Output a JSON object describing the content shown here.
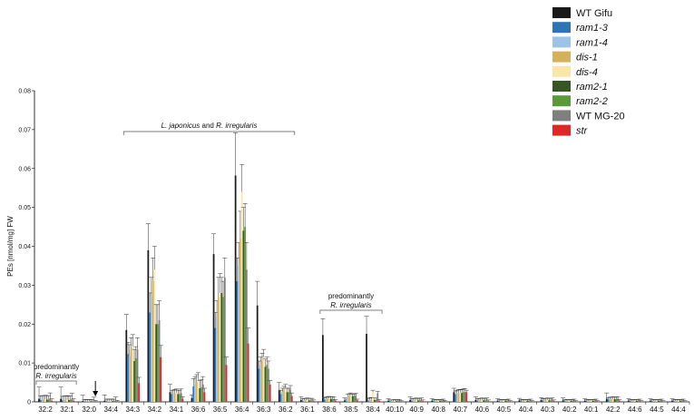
{
  "chart_data": {
    "type": "bar",
    "ylabel": "PEs [nmol/mg] FW",
    "ylim": [
      0,
      0.08
    ],
    "yticks": [
      "0",
      "0.01",
      "0.02",
      "0.03",
      "0.04",
      "0.05",
      "0.06",
      "0.07",
      "0.08"
    ],
    "categories": [
      "32:2",
      "32:1",
      "32:0",
      "34:4",
      "34:3",
      "34:2",
      "34:1",
      "36:6",
      "36:5",
      "36:4",
      "36:3",
      "36:2",
      "36:1",
      "38:6",
      "38:5",
      "38:4",
      "40:10",
      "40:9",
      "40:8",
      "40:7",
      "40:6",
      "40:5",
      "40:4",
      "40:3",
      "40:2",
      "40:1",
      "42:2",
      "44:6",
      "44:5",
      "44:4"
    ],
    "series": [
      {
        "name": "WT Gifu",
        "color": "#1a1a1a",
        "values": [
          0.0008,
          0.0008,
          0.0002,
          0.0003,
          0.0185,
          0.039,
          0.0025,
          0.001,
          0.038,
          0.0582,
          0.0248,
          0.003,
          0.0005,
          0.0172,
          0.0004,
          0.0175,
          0.0003,
          0.0005,
          0.0003,
          0.0025,
          0.0005,
          0.0003,
          0.0004,
          0.0005,
          0.0004,
          0.0003,
          0.0008,
          0.0003,
          0.0003,
          0.0003
        ],
        "errors": [
          0.003,
          0.003,
          0.0015,
          0.0015,
          0.004,
          0.0068,
          0.002,
          0.0008,
          0.0052,
          0.011,
          0.0062,
          0.002,
          0.0008,
          0.0042,
          0.0006,
          0.0045,
          0.0005,
          0.0008,
          0.0005,
          0.001,
          0.0008,
          0.0005,
          0.0005,
          0.0006,
          0.0006,
          0.0005,
          0.0015,
          0.0005,
          0.0005,
          0.0005
        ]
      },
      {
        "name": "ram1-3",
        "color": "#2f72b5",
        "values": [
          0.0005,
          0.0004,
          0.0001,
          0.0002,
          0.0123,
          0.023,
          0.002,
          0.004,
          0.019,
          0.031,
          0.0085,
          0.002,
          0.0003,
          0.0006,
          0.0002,
          0.0004,
          0.0002,
          0.0003,
          0.0002,
          0.002,
          0.0003,
          0.0002,
          0.0002,
          0.0003,
          0.0002,
          0.0002,
          0.0006,
          0.0002,
          0.0002,
          0.0002
        ],
        "errors": [
          0.001,
          0.001,
          0.0005,
          0.0005,
          0.003,
          0.005,
          0.001,
          0.002,
          0.004,
          0.006,
          0.002,
          0.001,
          0.0005,
          0.0005,
          0.0005,
          0.0005,
          0.0003,
          0.0005,
          0.0003,
          0.0008,
          0.0005,
          0.0003,
          0.0003,
          0.0005,
          0.0003,
          0.0003,
          0.0005,
          0.0003,
          0.0003,
          0.0003
        ]
      },
      {
        "name": "ram1-4",
        "color": "#9dc3e6",
        "values": [
          0.0006,
          0.0005,
          0.0001,
          0.0002,
          0.0117,
          0.027,
          0.002,
          0.0045,
          0.022,
          0.035,
          0.0095,
          0.0025,
          0.0004,
          0.0007,
          0.0015,
          0.0005,
          0.0002,
          0.0004,
          0.0003,
          0.0022,
          0.0004,
          0.0003,
          0.0003,
          0.0004,
          0.0003,
          0.0003,
          0.0007,
          0.0003,
          0.0003,
          0.0003
        ],
        "errors": [
          0.001,
          0.001,
          0.0005,
          0.0005,
          0.003,
          0.005,
          0.001,
          0.002,
          0.004,
          0.006,
          0.002,
          0.001,
          0.0005,
          0.0005,
          0.0005,
          0.0005,
          0.0003,
          0.0005,
          0.0003,
          0.0008,
          0.0005,
          0.0003,
          0.0003,
          0.0005,
          0.0003,
          0.0003,
          0.0005,
          0.0003,
          0.0003,
          0.0003
        ]
      },
      {
        "name": "dis-1",
        "color": "#d5b25a",
        "values": [
          0.0006,
          0.0005,
          0.0001,
          0.0002,
          0.0135,
          0.031,
          0.0022,
          0.005,
          0.027,
          0.042,
          0.0105,
          0.003,
          0.0004,
          0.0008,
          0.0016,
          0.0006,
          0.0002,
          0.0004,
          0.0003,
          0.0023,
          0.0004,
          0.0003,
          0.0003,
          0.0004,
          0.0003,
          0.0003,
          0.0007,
          0.0003,
          0.0003,
          0.0003
        ],
        "errors": [
          0.001,
          0.001,
          0.0005,
          0.0005,
          0.003,
          0.006,
          0.001,
          0.002,
          0.005,
          0.007,
          0.002,
          0.001,
          0.0005,
          0.0005,
          0.0005,
          0.0005,
          0.0003,
          0.0005,
          0.0003,
          0.0008,
          0.0005,
          0.0003,
          0.0003,
          0.0005,
          0.0003,
          0.0003,
          0.0005,
          0.0003,
          0.0003,
          0.0003
        ]
      },
      {
        "name": "dis-4",
        "color": "#fbe6a8",
        "values": [
          0.0007,
          0.0006,
          0.0001,
          0.0002,
          0.0143,
          0.034,
          0.0023,
          0.0055,
          0.028,
          0.054,
          0.0115,
          0.0035,
          0.0005,
          0.0009,
          0.0018,
          0.0025,
          0.0003,
          0.0005,
          0.0003,
          0.0024,
          0.0005,
          0.0003,
          0.0003,
          0.0005,
          0.0003,
          0.0003,
          0.0008,
          0.0003,
          0.0003,
          0.0003
        ],
        "errors": [
          0.001,
          0.001,
          0.0005,
          0.0005,
          0.003,
          0.006,
          0.001,
          0.002,
          0.005,
          0.007,
          0.002,
          0.001,
          0.0005,
          0.0005,
          0.0005,
          0.0005,
          0.0003,
          0.0005,
          0.0003,
          0.0008,
          0.0005,
          0.0003,
          0.0003,
          0.0005,
          0.0003,
          0.0003,
          0.0005,
          0.0003,
          0.0003,
          0.0003
        ]
      },
      {
        "name": "ram2-1",
        "color": "#375623",
        "values": [
          0.0006,
          0.0005,
          0.0001,
          0.0002,
          0.0105,
          0.02,
          0.002,
          0.0035,
          0.028,
          0.044,
          0.009,
          0.0025,
          0.0004,
          0.0008,
          0.0015,
          0.0005,
          0.0002,
          0.0004,
          0.0003,
          0.0023,
          0.0004,
          0.0003,
          0.0003,
          0.0004,
          0.0003,
          0.0003,
          0.0007,
          0.0003,
          0.0003,
          0.0003
        ],
        "errors": [
          0.001,
          0.001,
          0.0005,
          0.0005,
          0.003,
          0.005,
          0.001,
          0.002,
          0.004,
          0.006,
          0.002,
          0.001,
          0.0005,
          0.0005,
          0.0005,
          0.0005,
          0.0003,
          0.0005,
          0.0003,
          0.0008,
          0.0005,
          0.0003,
          0.0003,
          0.0005,
          0.0003,
          0.0003,
          0.0005,
          0.0003,
          0.0003,
          0.0003
        ]
      },
      {
        "name": "ram2-2",
        "color": "#5a9a3a",
        "values": [
          0.0006,
          0.0005,
          0.0001,
          0.0002,
          0.0112,
          0.02,
          0.002,
          0.0037,
          0.027,
          0.045,
          0.0095,
          0.0025,
          0.0004,
          0.0008,
          0.0015,
          0.0005,
          0.0002,
          0.0004,
          0.0003,
          0.0025,
          0.0004,
          0.0003,
          0.0003,
          0.0004,
          0.0003,
          0.0003,
          0.0007,
          0.0003,
          0.0003,
          0.0003
        ],
        "errors": [
          0.001,
          0.001,
          0.0005,
          0.0005,
          0.003,
          0.005,
          0.001,
          0.002,
          0.004,
          0.006,
          0.002,
          0.001,
          0.0005,
          0.0005,
          0.0005,
          0.0005,
          0.0003,
          0.0005,
          0.0003,
          0.0008,
          0.0005,
          0.0003,
          0.0003,
          0.0005,
          0.0003,
          0.0003,
          0.0005,
          0.0003,
          0.0003,
          0.0003
        ]
      },
      {
        "name": "WT MG-20",
        "color": "#7f7f7f",
        "values": [
          0.0008,
          0.0007,
          0.0002,
          0.0003,
          0.0135,
          0.021,
          0.0023,
          0.0045,
          0.032,
          0.034,
          0.0085,
          0.0032,
          0.0004,
          0.0007,
          0.0017,
          0.0022,
          0.0003,
          0.0005,
          0.0004,
          0.0026,
          0.0005,
          0.0004,
          0.0004,
          0.0005,
          0.0004,
          0.0004,
          0.0008,
          0.0004,
          0.0004,
          0.0004
        ],
        "errors": [
          0.0015,
          0.0015,
          0.001,
          0.001,
          0.003,
          0.005,
          0.001,
          0.002,
          0.005,
          0.007,
          0.002,
          0.001,
          0.0005,
          0.0005,
          0.0005,
          0.0005,
          0.0003,
          0.0005,
          0.0003,
          0.0008,
          0.0005,
          0.0003,
          0.0003,
          0.0005,
          0.0003,
          0.0003,
          0.0005,
          0.0003,
          0.0003,
          0.0003
        ]
      },
      {
        "name": "str",
        "color": "#e02626",
        "values": [
          0.0003,
          0.0003,
          0.0001,
          0.0001,
          0.0048,
          0.0115,
          0.0008,
          0.0025,
          0.0095,
          0.015,
          0.0045,
          0.0015,
          0.0002,
          0.0003,
          0.0004,
          0.0003,
          0.0001,
          0.0002,
          0.0002,
          0.0025,
          0.0002,
          0.0001,
          0.0001,
          0.0002,
          0.0001,
          0.0001,
          0.0003,
          0.0001,
          0.0001,
          0.0001
        ],
        "errors": [
          0.0005,
          0.0005,
          0.0003,
          0.0003,
          0.0015,
          0.003,
          0.0005,
          0.001,
          0.002,
          0.004,
          0.001,
          0.0008,
          0.0003,
          0.0003,
          0.0003,
          0.0003,
          0.0002,
          0.0003,
          0.0002,
          0.0005,
          0.0003,
          0.0002,
          0.0002,
          0.0003,
          0.0002,
          0.0002,
          0.0003,
          0.0002,
          0.0002,
          0.0002
        ]
      }
    ],
    "legend_position": "top-right",
    "annotations": [
      {
        "text": "predominantly",
        "italic_text": "R. irregularis",
        "bracket": [
          "32:2",
          "32:1"
        ]
      },
      {
        "text": "L. japonicus",
        "connector": " and ",
        "italic_text": "R. irregularis",
        "bracket": [
          "34:3",
          "36:2"
        ]
      },
      {
        "text": "predominantly",
        "italic_text": "R. irregularis",
        "bracket": [
          "38:6",
          "38:4"
        ]
      }
    ],
    "arrow_category": "32:0"
  }
}
